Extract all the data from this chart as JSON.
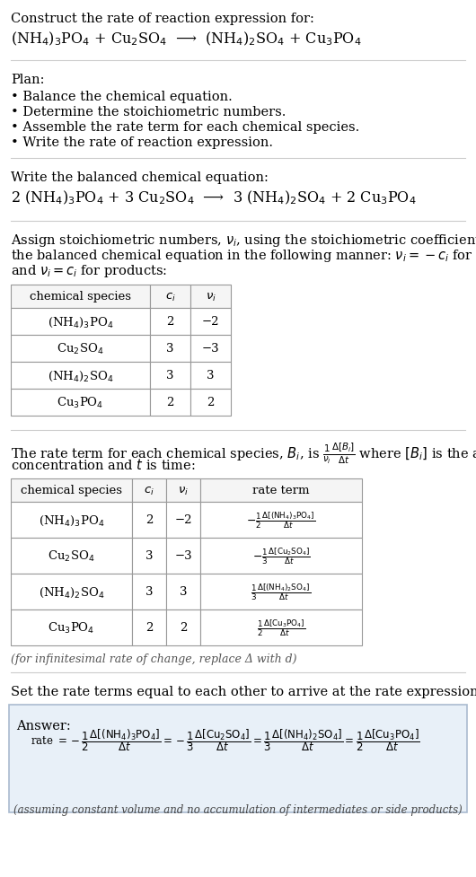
{
  "title_line1": "Construct the rate of reaction expression for:",
  "reaction_unbalanced": "(NH$_4$)$_3$PO$_4$ + Cu$_2$SO$_4$  ⟶  (NH$_4$)$_2$SO$_4$ + Cu$_3$PO$_4$",
  "plan_header": "Plan:",
  "plan_items": [
    "• Balance the chemical equation.",
    "• Determine the stoichiometric numbers.",
    "• Assemble the rate term for each chemical species.",
    "• Write the rate of reaction expression."
  ],
  "balanced_header": "Write the balanced chemical equation:",
  "reaction_balanced": "2 (NH$_4$)$_3$PO$_4$ + 3 Cu$_2$SO$_4$  ⟶  3 (NH$_4$)$_2$SO$_4$ + 2 Cu$_3$PO$_4$",
  "stoich_lines": [
    "Assign stoichiometric numbers, $\\nu_i$, using the stoichiometric coefficients, $c_i$, from",
    "the balanced chemical equation in the following manner: $\\nu_i = -c_i$ for reactants",
    "and $\\nu_i = c_i$ for products:"
  ],
  "table1_headers": [
    "chemical species",
    "$c_i$",
    "$\\nu_i$"
  ],
  "table1_rows": [
    [
      "(NH$_4$)$_3$PO$_4$",
      "2",
      "−2"
    ],
    [
      "Cu$_2$SO$_4$",
      "3",
      "−3"
    ],
    [
      "(NH$_4$)$_2$SO$_4$",
      "3",
      "3"
    ],
    [
      "Cu$_3$PO$_4$",
      "2",
      "2"
    ]
  ],
  "rate_lines": [
    "The rate term for each chemical species, $B_i$, is $\\frac{1}{\\nu_i}\\frac{\\Delta[B_i]}{\\Delta t}$ where $[B_i]$ is the amount",
    "concentration and $t$ is time:"
  ],
  "table2_headers": [
    "chemical species",
    "$c_i$",
    "$\\nu_i$",
    "rate term"
  ],
  "table2_rows": [
    [
      "(NH$_4$)$_3$PO$_4$",
      "2",
      "−2",
      "$-\\frac{1}{2}\\frac{\\Delta[(\\mathrm{NH_4})_3\\mathrm{PO_4}]}{\\Delta t}$"
    ],
    [
      "Cu$_2$SO$_4$",
      "3",
      "−3",
      "$-\\frac{1}{3}\\frac{\\Delta[\\mathrm{Cu_2SO_4}]}{\\Delta t}$"
    ],
    [
      "(NH$_4$)$_2$SO$_4$",
      "3",
      "3",
      "$\\frac{1}{3}\\frac{\\Delta[(\\mathrm{NH_4})_2\\mathrm{SO_4}]}{\\Delta t}$"
    ],
    [
      "Cu$_3$PO$_4$",
      "2",
      "2",
      "$\\frac{1}{2}\\frac{\\Delta[\\mathrm{Cu_3PO_4}]}{\\Delta t}$"
    ]
  ],
  "infinitesimal_note": "(for infinitesimal rate of change, replace Δ with d)",
  "answer_header": "Set the rate terms equal to each other to arrive at the rate expression:",
  "answer_label": "Answer:",
  "answer_note": "(assuming constant volume and no accumulation of intermediates or side products)",
  "bg_color": "#ffffff",
  "text_color": "#000000",
  "table_border_color": "#999999",
  "answer_bg_color": "#e8f0f8",
  "answer_border_color": "#aabbd0",
  "section_line_color": "#cccccc"
}
